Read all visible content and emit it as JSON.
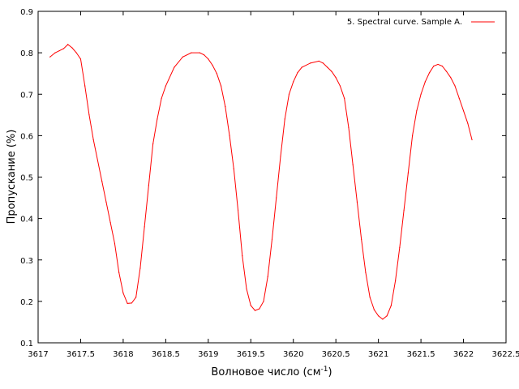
{
  "chart_data": {
    "type": "line",
    "title": "",
    "xlabel": "Волновое число (см",
    "xlabel_sup": "-1",
    "xlabel_close": ")",
    "ylabel": "Пропускание (%)",
    "xlim": [
      3617,
      3622.5
    ],
    "ylim": [
      0.1,
      0.9
    ],
    "x_ticks": [
      3617,
      3617.5,
      3618,
      3618.5,
      3619,
      3619.5,
      3620,
      3620.5,
      3621,
      3621.5,
      3622,
      3622.5
    ],
    "x_tick_labels": [
      "3617",
      "3617.5",
      "3618",
      "3618.5",
      "3619",
      "3619.5",
      "3620",
      "3620.5",
      "3621",
      "3621.5",
      "3622",
      "3622.5"
    ],
    "y_ticks": [
      0.1,
      0.2,
      0.3,
      0.4,
      0.5,
      0.6,
      0.7,
      0.8,
      0.9
    ],
    "y_tick_labels": [
      "0.1",
      "0.2",
      "0.3",
      "0.4",
      "0.5",
      "0.6",
      "0.7",
      "0.8",
      "0.9"
    ],
    "grid": false,
    "legend_position": "top-right",
    "series": [
      {
        "name": "5. Spectral curve. Sample A.",
        "color": "#ff0000",
        "x": [
          3617.14,
          3617.2,
          3617.25,
          3617.3,
          3617.35,
          3617.4,
          3617.45,
          3617.5,
          3617.55,
          3617.6,
          3617.65,
          3617.7,
          3617.75,
          3617.8,
          3617.85,
          3617.9,
          3617.95,
          3618.0,
          3618.05,
          3618.1,
          3618.15,
          3618.2,
          3618.25,
          3618.3,
          3618.35,
          3618.4,
          3618.45,
          3618.5,
          3618.6,
          3618.7,
          3618.8,
          3618.9,
          3618.95,
          3619.0,
          3619.05,
          3619.1,
          3619.15,
          3619.2,
          3619.25,
          3619.3,
          3619.35,
          3619.4,
          3619.45,
          3619.5,
          3619.55,
          3619.6,
          3619.65,
          3619.7,
          3619.75,
          3619.8,
          3619.85,
          3619.9,
          3619.95,
          3620.0,
          3620.05,
          3620.1,
          3620.2,
          3620.3,
          3620.35,
          3620.4,
          3620.45,
          3620.5,
          3620.55,
          3620.6,
          3620.65,
          3620.7,
          3620.75,
          3620.8,
          3620.85,
          3620.9,
          3620.95,
          3621.0,
          3621.05,
          3621.1,
          3621.15,
          3621.2,
          3621.25,
          3621.3,
          3621.35,
          3621.4,
          3621.45,
          3621.5,
          3621.55,
          3621.6,
          3621.65,
          3621.7,
          3621.75,
          3621.8,
          3621.85,
          3621.9,
          3621.95,
          3622.0,
          3622.05,
          3622.1
        ],
        "y": [
          0.79,
          0.8,
          0.805,
          0.81,
          0.82,
          0.812,
          0.8,
          0.785,
          0.72,
          0.65,
          0.59,
          0.54,
          0.49,
          0.44,
          0.39,
          0.34,
          0.27,
          0.22,
          0.195,
          0.196,
          0.21,
          0.28,
          0.38,
          0.48,
          0.58,
          0.64,
          0.69,
          0.72,
          0.765,
          0.79,
          0.8,
          0.8,
          0.795,
          0.785,
          0.77,
          0.75,
          0.72,
          0.67,
          0.6,
          0.52,
          0.42,
          0.31,
          0.23,
          0.19,
          0.178,
          0.182,
          0.2,
          0.26,
          0.35,
          0.45,
          0.55,
          0.64,
          0.7,
          0.73,
          0.752,
          0.765,
          0.775,
          0.78,
          0.775,
          0.765,
          0.755,
          0.74,
          0.72,
          0.69,
          0.62,
          0.53,
          0.44,
          0.35,
          0.27,
          0.21,
          0.18,
          0.165,
          0.157,
          0.165,
          0.19,
          0.25,
          0.33,
          0.42,
          0.51,
          0.6,
          0.66,
          0.7,
          0.73,
          0.752,
          0.768,
          0.772,
          0.768,
          0.755,
          0.74,
          0.72,
          0.69,
          0.66,
          0.63,
          0.59
        ]
      }
    ]
  }
}
